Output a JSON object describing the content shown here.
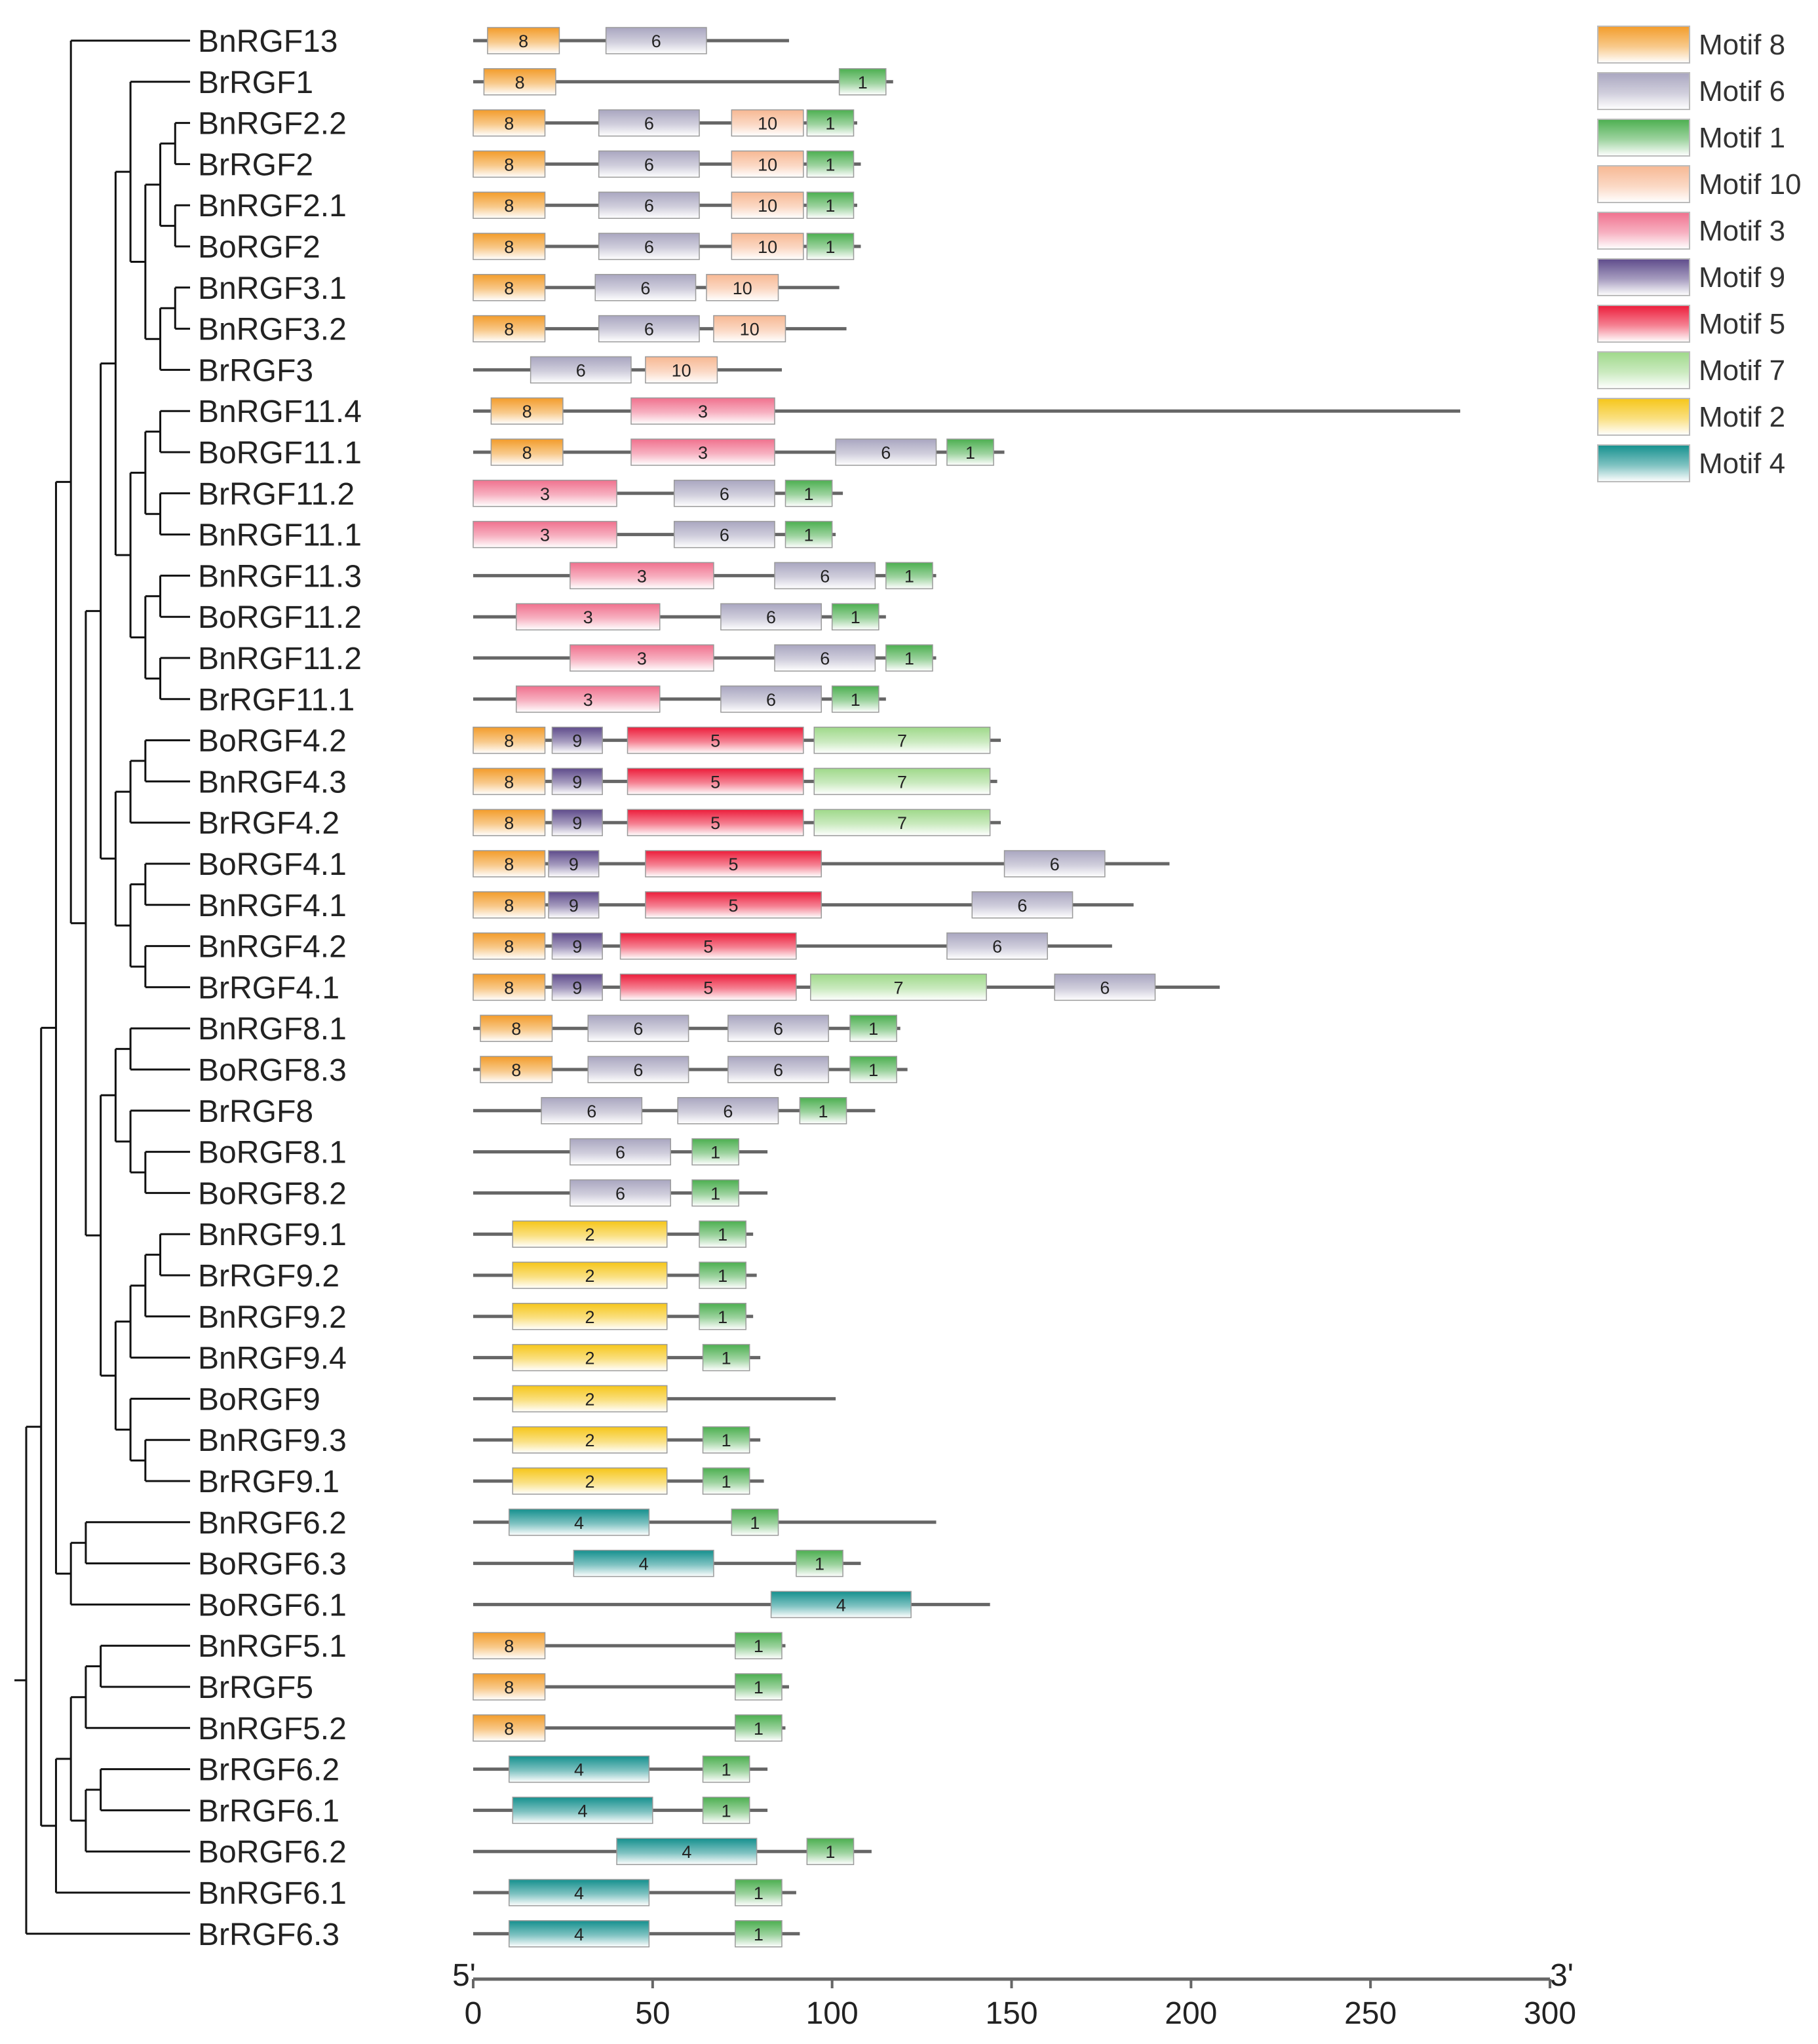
{
  "chart_data": {
    "type": "motif-diagram",
    "title": "",
    "axis": {
      "min": 0,
      "max": 300,
      "ticks": [
        0,
        50,
        100,
        150,
        200,
        250,
        300
      ],
      "start_label": "5'",
      "end_label": "3'"
    },
    "motifs": [
      {
        "id": "8",
        "name": "Motif 8",
        "color": "#f39c2a"
      },
      {
        "id": "6",
        "name": "Motif 6",
        "color": "#a9a6c0"
      },
      {
        "id": "1",
        "name": "Motif 1",
        "color": "#4caf50"
      },
      {
        "id": "10",
        "name": "Motif 10",
        "color": "#f7b893"
      },
      {
        "id": "3",
        "name": "Motif 3",
        "color": "#f0718e"
      },
      {
        "id": "9",
        "name": "Motif 9",
        "color": "#5e4b8b"
      },
      {
        "id": "5",
        "name": "Motif 5",
        "color": "#ec1c3a"
      },
      {
        "id": "7",
        "name": "Motif 7",
        "color": "#9fd98a"
      },
      {
        "id": "2",
        "name": "Motif 2",
        "color": "#f6c619"
      },
      {
        "id": "4",
        "name": "Motif 4",
        "color": "#14908e"
      }
    ],
    "genes": [
      {
        "name": "BnRGF13",
        "length": 88,
        "motifs": [
          [
            "8",
            4,
            24
          ],
          [
            "6",
            37,
            65
          ]
        ]
      },
      {
        "name": "BrRGF1",
        "length": 117,
        "motifs": [
          [
            "8",
            3,
            23
          ],
          [
            "1",
            102,
            115
          ]
        ]
      },
      {
        "name": "BnRGF2.2",
        "length": 107,
        "motifs": [
          [
            "8",
            0,
            20
          ],
          [
            "6",
            35,
            63
          ],
          [
            "10",
            72,
            92
          ],
          [
            "1",
            93,
            106
          ]
        ]
      },
      {
        "name": "BrRGF2",
        "length": 108,
        "motifs": [
          [
            "8",
            0,
            20
          ],
          [
            "6",
            35,
            63
          ],
          [
            "10",
            72,
            92
          ],
          [
            "1",
            93,
            106
          ]
        ]
      },
      {
        "name": "BnRGF2.1",
        "length": 107,
        "motifs": [
          [
            "8",
            0,
            20
          ],
          [
            "6",
            35,
            63
          ],
          [
            "10",
            72,
            92
          ],
          [
            "1",
            93,
            106
          ]
        ]
      },
      {
        "name": "BoRGF2",
        "length": 108,
        "motifs": [
          [
            "8",
            0,
            20
          ],
          [
            "6",
            35,
            63
          ],
          [
            "10",
            72,
            92
          ],
          [
            "1",
            93,
            106
          ]
        ]
      },
      {
        "name": "BnRGF3.1",
        "length": 102,
        "motifs": [
          [
            "8",
            0,
            20
          ],
          [
            "6",
            34,
            62
          ],
          [
            "10",
            65,
            85
          ]
        ]
      },
      {
        "name": "BnRGF3.2",
        "length": 104,
        "motifs": [
          [
            "8",
            0,
            20
          ],
          [
            "6",
            35,
            63
          ],
          [
            "10",
            67,
            87
          ]
        ]
      },
      {
        "name": "BrRGF3",
        "length": 86,
        "motifs": [
          [
            "6",
            16,
            44
          ],
          [
            "10",
            48,
            68
          ]
        ]
      },
      {
        "name": "BnRGF11.4",
        "length": 275,
        "motifs": [
          [
            "8",
            5,
            25
          ],
          [
            "3",
            44,
            84
          ]
        ]
      },
      {
        "name": "BoRGF11.1",
        "length": 148,
        "motifs": [
          [
            "8",
            5,
            25
          ],
          [
            "3",
            44,
            84
          ],
          [
            "6",
            101,
            129
          ],
          [
            "1",
            132,
            145
          ]
        ]
      },
      {
        "name": "BrRGF11.2",
        "length": 103,
        "motifs": [
          [
            "3",
            0,
            40
          ],
          [
            "6",
            56,
            84
          ],
          [
            "1",
            87,
            100
          ]
        ]
      },
      {
        "name": "BnRGF11.1",
        "length": 101,
        "motifs": [
          [
            "3",
            0,
            40
          ],
          [
            "6",
            56,
            84
          ],
          [
            "1",
            87,
            100
          ]
        ]
      },
      {
        "name": "BnRGF11.3",
        "length": 129,
        "motifs": [
          [
            "3",
            27,
            67
          ],
          [
            "6",
            84,
            112
          ],
          [
            "1",
            115,
            128
          ]
        ]
      },
      {
        "name": "BoRGF11.2",
        "length": 115,
        "motifs": [
          [
            "3",
            12,
            52
          ],
          [
            "6",
            69,
            97
          ],
          [
            "1",
            100,
            113
          ]
        ]
      },
      {
        "name": "BnRGF11.2",
        "length": 129,
        "motifs": [
          [
            "3",
            27,
            67
          ],
          [
            "6",
            84,
            112
          ],
          [
            "1",
            115,
            128
          ]
        ]
      },
      {
        "name": "BrRGF11.1",
        "length": 115,
        "motifs": [
          [
            "3",
            12,
            52
          ],
          [
            "6",
            69,
            97
          ],
          [
            "1",
            100,
            113
          ]
        ]
      },
      {
        "name": "BoRGF4.2",
        "length": 147,
        "motifs": [
          [
            "8",
            0,
            20
          ],
          [
            "9",
            22,
            36
          ],
          [
            "5",
            43,
            92
          ],
          [
            "7",
            95,
            144
          ]
        ]
      },
      {
        "name": "BnRGF4.3",
        "length": 146,
        "motifs": [
          [
            "8",
            0,
            20
          ],
          [
            "9",
            22,
            36
          ],
          [
            "5",
            43,
            92
          ],
          [
            "7",
            95,
            144
          ]
        ]
      },
      {
        "name": "BrRGF4.2",
        "length": 147,
        "motifs": [
          [
            "8",
            0,
            20
          ],
          [
            "9",
            22,
            36
          ],
          [
            "5",
            43,
            92
          ],
          [
            "7",
            95,
            144
          ]
        ]
      },
      {
        "name": "BoRGF4.1",
        "length": 194,
        "motifs": [
          [
            "8",
            0,
            20
          ],
          [
            "9",
            21,
            35
          ],
          [
            "5",
            48,
            97
          ],
          [
            "6",
            148,
            176
          ]
        ]
      },
      {
        "name": "BnRGF4.1",
        "length": 184,
        "motifs": [
          [
            "8",
            0,
            20
          ],
          [
            "9",
            21,
            35
          ],
          [
            "5",
            48,
            97
          ],
          [
            "6",
            139,
            167
          ]
        ]
      },
      {
        "name": "BnRGF4.2",
        "length": 178,
        "motifs": [
          [
            "8",
            0,
            20
          ],
          [
            "9",
            22,
            36
          ],
          [
            "5",
            41,
            90
          ],
          [
            "6",
            132,
            160
          ]
        ]
      },
      {
        "name": "BrRGF4.1",
        "length": 208,
        "motifs": [
          [
            "8",
            0,
            20
          ],
          [
            "9",
            22,
            36
          ],
          [
            "5",
            41,
            90
          ],
          [
            "7",
            94,
            143
          ],
          [
            "6",
            162,
            190
          ]
        ]
      },
      {
        "name": "BnRGF8.1",
        "length": 119,
        "motifs": [
          [
            "8",
            2,
            22
          ],
          [
            "6",
            32,
            60
          ],
          [
            "6",
            71,
            99
          ],
          [
            "1",
            105,
            118
          ]
        ]
      },
      {
        "name": "BoRGF8.3",
        "length": 121,
        "motifs": [
          [
            "8",
            2,
            22
          ],
          [
            "6",
            32,
            60
          ],
          [
            "6",
            71,
            99
          ],
          [
            "1",
            105,
            118
          ]
        ]
      },
      {
        "name": "BrRGF8",
        "length": 112,
        "motifs": [
          [
            "6",
            19,
            47
          ],
          [
            "6",
            57,
            85
          ],
          [
            "1",
            91,
            104
          ]
        ]
      },
      {
        "name": "BoRGF8.1",
        "length": 82,
        "motifs": [
          [
            "6",
            27,
            55
          ],
          [
            "1",
            61,
            74
          ]
        ]
      },
      {
        "name": "BoRGF8.2",
        "length": 82,
        "motifs": [
          [
            "6",
            27,
            55
          ],
          [
            "1",
            61,
            74
          ]
        ]
      },
      {
        "name": "BnRGF9.1",
        "length": 78,
        "motifs": [
          [
            "2",
            11,
            54
          ],
          [
            "1",
            63,
            76
          ]
        ]
      },
      {
        "name": "BrRGF9.2",
        "length": 79,
        "motifs": [
          [
            "2",
            11,
            54
          ],
          [
            "1",
            63,
            76
          ]
        ]
      },
      {
        "name": "BnRGF9.2",
        "length": 78,
        "motifs": [
          [
            "2",
            11,
            54
          ],
          [
            "1",
            63,
            76
          ]
        ]
      },
      {
        "name": "BnRGF9.4",
        "length": 80,
        "motifs": [
          [
            "2",
            11,
            54
          ],
          [
            "1",
            64,
            77
          ]
        ]
      },
      {
        "name": "BoRGF9",
        "length": 101,
        "motifs": [
          [
            "2",
            11,
            54
          ]
        ]
      },
      {
        "name": "BnRGF9.3",
        "length": 80,
        "motifs": [
          [
            "2",
            11,
            54
          ],
          [
            "1",
            64,
            77
          ]
        ]
      },
      {
        "name": "BrRGF9.1",
        "length": 81,
        "motifs": [
          [
            "2",
            11,
            54
          ],
          [
            "1",
            64,
            77
          ]
        ]
      },
      {
        "name": "BnRGF6.2",
        "length": 129,
        "motifs": [
          [
            "4",
            10,
            49
          ],
          [
            "1",
            72,
            85
          ]
        ]
      },
      {
        "name": "BoRGF6.3",
        "length": 108,
        "motifs": [
          [
            "4",
            28,
            67
          ],
          [
            "1",
            90,
            103
          ]
        ]
      },
      {
        "name": "BoRGF6.1",
        "length": 144,
        "motifs": [
          [
            "4",
            83,
            122
          ]
        ]
      },
      {
        "name": "BnRGF5.1",
        "length": 87,
        "motifs": [
          [
            "8",
            0,
            20
          ],
          [
            "1",
            73,
            86
          ]
        ]
      },
      {
        "name": "BrRGF5",
        "length": 88,
        "motifs": [
          [
            "8",
            0,
            20
          ],
          [
            "1",
            73,
            86
          ]
        ]
      },
      {
        "name": "BnRGF5.2",
        "length": 87,
        "motifs": [
          [
            "8",
            0,
            20
          ],
          [
            "1",
            73,
            86
          ]
        ]
      },
      {
        "name": "BrRGF6.2",
        "length": 82,
        "motifs": [
          [
            "4",
            10,
            49
          ],
          [
            "1",
            64,
            77
          ]
        ]
      },
      {
        "name": "BrRGF6.1",
        "length": 82,
        "motifs": [
          [
            "4",
            11,
            50
          ],
          [
            "1",
            64,
            77
          ]
        ]
      },
      {
        "name": "BoRGF6.2",
        "length": 111,
        "motifs": [
          [
            "4",
            40,
            79
          ],
          [
            "1",
            93,
            106
          ]
        ]
      },
      {
        "name": "BnRGF6.1",
        "length": 90,
        "motifs": [
          [
            "4",
            10,
            49
          ],
          [
            "1",
            73,
            86
          ]
        ]
      },
      {
        "name": "BrRGF6.3",
        "length": 91,
        "motifs": [
          [
            "4",
            10,
            49
          ],
          [
            "1",
            73,
            86
          ]
        ]
      }
    ],
    "tree": [
      46,
      [
        [
          [
            0,
            [
              [
                [
                  [
                    1,
                    [
                      [
                        [
                          2,
                          3
                        ],
                        [
                          4,
                          5
                        ]
                      ],
                      [
                        [
                          6,
                          7
                        ],
                        8
                      ]
                    ]
                  ],
                  [
                    [
                      [
                        9,
                        10
                      ],
                      [
                        11,
                        12
                      ]
                    ],
                    [
                      [
                        13,
                        14
                      ],
                      [
                        15,
                        16
                      ]
                    ]
                  ]
                ],
                [
                  [
                    [
                      17,
                      18
                    ],
                    19
                  ],
                  [
                    [
                      20,
                      21
                    ],
                    [
                      22,
                      23
                    ]
                  ]
                ]
              ],
              [
                [
                  [
                    24,
                    25
                  ],
                  [
                    26,
                    [
                      27,
                      28
                    ]
                  ]
                ],
                [
                  [
                    [
                      [
                        29,
                        30
                      ],
                      31
                    ],
                    32
                  ],
                  [
                    33,
                    [
                      34,
                      35
                    ]
                  ]
                ]
              ]
            ]
          ],
          [
            [
              36,
              37
            ],
            38
          ]
        ],
        [
          [
            [
              [
                39,
                40
              ],
              41
            ],
            [
              [
                42,
                43
              ],
              44
            ]
          ],
          45
        ]
      ]
    ]
  }
}
